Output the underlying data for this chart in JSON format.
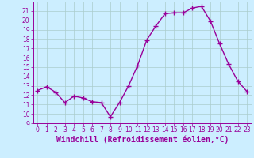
{
  "x": [
    0,
    1,
    2,
    3,
    4,
    5,
    6,
    7,
    8,
    9,
    10,
    11,
    12,
    13,
    14,
    15,
    16,
    17,
    18,
    19,
    20,
    21,
    22,
    23
  ],
  "y": [
    12.5,
    12.9,
    12.3,
    11.2,
    11.9,
    11.7,
    11.3,
    11.2,
    9.7,
    11.2,
    13.0,
    15.2,
    17.9,
    19.4,
    20.7,
    20.8,
    20.8,
    21.3,
    21.5,
    19.9,
    17.5,
    15.3,
    13.5,
    12.4
  ],
  "line_color": "#990099",
  "marker": "+",
  "marker_size": 4,
  "linewidth": 1.0,
  "background_color": "#cceeff",
  "grid_color": "#aacccc",
  "xlabel": "Windchill (Refroidissement éolien,°C)",
  "xlabel_fontsize": 7,
  "xlim": [
    -0.5,
    23.5
  ],
  "ylim": [
    9,
    22
  ],
  "yticks": [
    9,
    10,
    11,
    12,
    13,
    14,
    15,
    16,
    17,
    18,
    19,
    20,
    21
  ],
  "xticks": [
    0,
    1,
    2,
    3,
    4,
    5,
    6,
    7,
    8,
    9,
    10,
    11,
    12,
    13,
    14,
    15,
    16,
    17,
    18,
    19,
    20,
    21,
    22,
    23
  ],
  "tick_fontsize": 5.5,
  "tick_color": "#990099",
  "axis_color": "#990099",
  "marker_edge_width": 1.0
}
